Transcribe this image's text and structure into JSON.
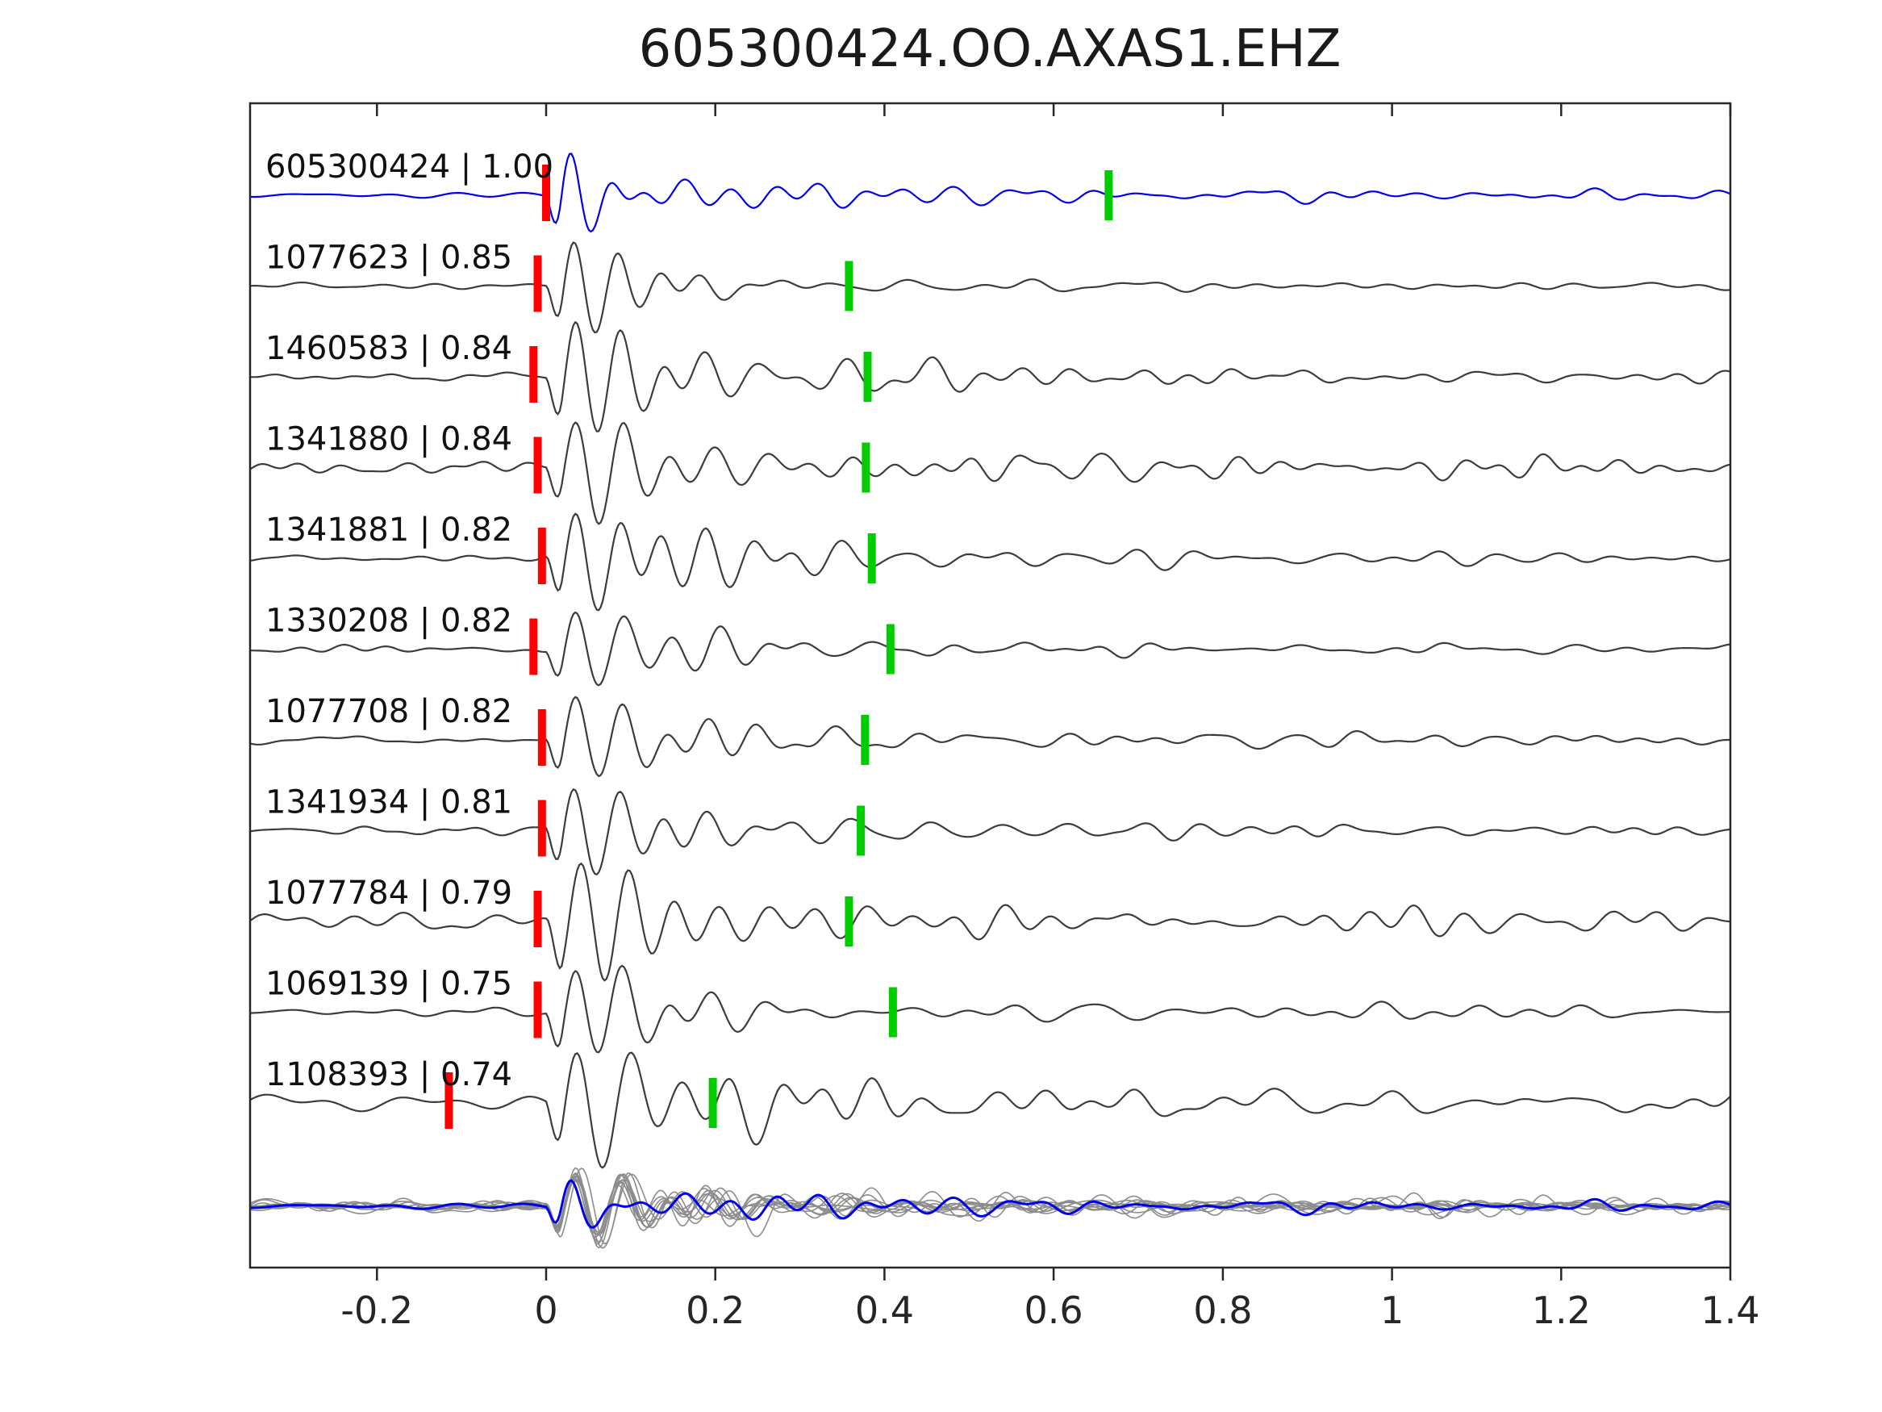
{
  "title": "605300424.OO.AXAS1.EHZ",
  "chart_data": {
    "type": "line",
    "title": "605300424.OO.AXAS1.EHZ",
    "xlabel": "",
    "ylabel": "",
    "xlim": [
      -0.35,
      1.4
    ],
    "x_ticks": [
      -0.2,
      0,
      0.2,
      0.4,
      0.6,
      0.8,
      1,
      1.2,
      1.4
    ],
    "x_tick_labels": [
      "-0.2",
      "0",
      "0.2",
      "0.4",
      "0.6",
      "0.8",
      "1",
      "1.2",
      "1.4"
    ],
    "grid": false,
    "colors": {
      "template": "#0000ee",
      "match": "#3c3c3c",
      "stack_gray": "#8c8c8c",
      "pick_red": "#ff0000",
      "pick_green": "#00cc00",
      "axis": "#262626",
      "label_text": "#111111"
    },
    "traces": [
      {
        "id": "605300424",
        "cc": "1.00",
        "label": "605300424 | 1.00",
        "red_tick": 0.0,
        "green_tick": 0.665,
        "seed": 11,
        "amp": 100,
        "freq": 22,
        "decay": 0.05,
        "coda": 14,
        "noise": 2.5,
        "is_template": true
      },
      {
        "id": "1077623",
        "cc": "0.85",
        "label": "1077623 | 0.85",
        "red_tick": -0.01,
        "green_tick": 0.358,
        "seed": 22,
        "amp": 88,
        "freq": 20,
        "decay": 0.09,
        "coda": 9,
        "noise": 3.5,
        "is_template": false
      },
      {
        "id": "1460583",
        "cc": "0.84",
        "label": "1460583 | 0.84",
        "red_tick": -0.015,
        "green_tick": 0.38,
        "seed": 33,
        "amp": 84,
        "freq": 19,
        "decay": 0.17,
        "coda": 11,
        "noise": 4,
        "is_template": false
      },
      {
        "id": "1341880",
        "cc": "0.84",
        "label": "1341880 | 0.84",
        "red_tick": -0.01,
        "green_tick": 0.378,
        "seed": 44,
        "amp": 78,
        "freq": 18,
        "decay": 0.13,
        "coda": 13,
        "noise": 8,
        "is_template": false
      },
      {
        "id": "1341881",
        "cc": "0.82",
        "label": "1341881 | 0.82",
        "red_tick": -0.005,
        "green_tick": 0.385,
        "seed": 55,
        "amp": 84,
        "freq": 19.5,
        "decay": 0.15,
        "coda": 11,
        "noise": 4,
        "is_template": false
      },
      {
        "id": "1330208",
        "cc": "0.82",
        "label": "1330208 | 0.82",
        "red_tick": -0.015,
        "green_tick": 0.407,
        "seed": 66,
        "amp": 72,
        "freq": 18,
        "decay": 0.11,
        "coda": 11,
        "noise": 5,
        "is_template": false
      },
      {
        "id": "1077708",
        "cc": "0.82",
        "label": "1077708 | 0.82",
        "red_tick": -0.005,
        "green_tick": 0.377,
        "seed": 77,
        "amp": 78,
        "freq": 19,
        "decay": 0.12,
        "coda": 13,
        "noise": 7,
        "is_template": false
      },
      {
        "id": "1341934",
        "cc": "0.81",
        "label": "1341934 | 0.81",
        "red_tick": -0.005,
        "green_tick": 0.372,
        "seed": 88,
        "amp": 88,
        "freq": 19,
        "decay": 0.13,
        "coda": 11,
        "noise": 4.5,
        "is_template": false
      },
      {
        "id": "1077784",
        "cc": "0.79",
        "label": "1077784 | 0.79",
        "red_tick": -0.01,
        "green_tick": 0.358,
        "seed": 99,
        "amp": 92,
        "freq": 18,
        "decay": 0.12,
        "coda": 16,
        "noise": 10,
        "is_template": false
      },
      {
        "id": "1069139",
        "cc": "0.75",
        "label": "1069139 | 0.75",
        "red_tick": -0.01,
        "green_tick": 0.41,
        "seed": 110,
        "amp": 86,
        "freq": 18.5,
        "decay": 0.12,
        "coda": 11,
        "noise": 4.5,
        "is_template": false
      },
      {
        "id": "1108393",
        "cc": "0.74",
        "label": "1108393 | 0.74",
        "red_tick": -0.115,
        "green_tick": 0.197,
        "seed": 121,
        "amp": 92,
        "freq": 17,
        "decay": 0.15,
        "coda": 18,
        "noise": 12,
        "is_template": false
      }
    ],
    "stack": {
      "member_count": 10,
      "member_amp": 58,
      "template_amp": 58
    }
  }
}
